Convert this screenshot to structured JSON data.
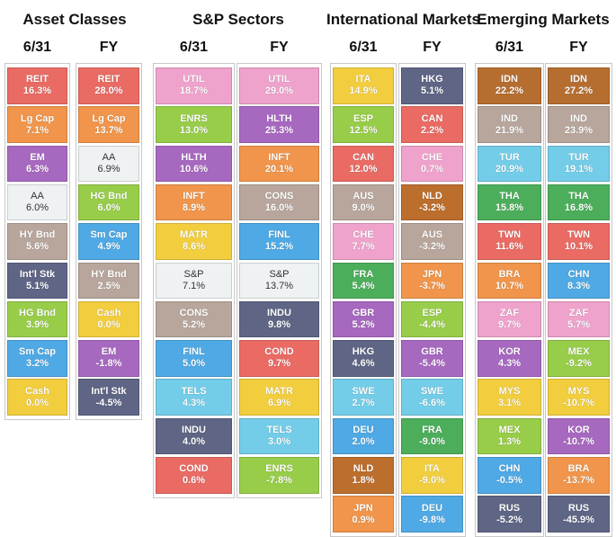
{
  "colors": {
    "REIT": "#e96b64",
    "Lg Cap": "#f0954b",
    "EM": "#a768c0",
    "AA": "#eef2f3",
    "HY Bnd": "#b8a69c",
    "Int'l Stk": "#5e6585",
    "HG Bnd": "#98cd4a",
    "Sm Cap": "#4fa9e4",
    "Cash": "#f2ce3f",
    "UTIL": "#efa3cc",
    "ENRS": "#98cd4a",
    "HLTH": "#a768c0",
    "INFT": "#f0954b",
    "MATR": "#f2ce3f",
    "S&P": "#eef2f3",
    "CONS": "#b8a69c",
    "FINL": "#4fa9e4",
    "TELS": "#73cde8",
    "INDU": "#5e6585",
    "COND": "#e96b64",
    "ITA": "#f2ce3f",
    "ESP": "#98cd4a",
    "CAN": "#e96b64",
    "AUS": "#b8a69c",
    "CHE": "#efa3cc",
    "FRA": "#4cae5b",
    "GBR": "#a768c0",
    "HKG": "#5e6585",
    "SWE": "#73cde8",
    "DEU": "#4fa9e4",
    "NLD": "#bc6e2d",
    "JPN": "#f0954b",
    "IDN": "#b66e30",
    "IND": "#b8a69c",
    "TUR": "#73cde8",
    "THA": "#4cae5b",
    "TWN": "#e96b64",
    "BRA": "#f0954b",
    "ZAF": "#efa3cc",
    "KOR": "#a768c0",
    "MYS": "#f2ce3f",
    "MEX": "#98cd4a",
    "CHN": "#4fa9e4",
    "RUS": "#5e6585"
  },
  "chart_data": {
    "type": "table",
    "panels": [
      {
        "title": "Asset Classes",
        "columns": [
          {
            "header": "6/31",
            "cells": [
              {
                "label": "REIT",
                "value": "16.3%"
              },
              {
                "label": "Lg Cap",
                "value": "7.1%"
              },
              {
                "label": "EM",
                "value": "6.3%"
              },
              {
                "label": "AA",
                "value": "6.0%"
              },
              {
                "label": "HY Bnd",
                "value": "5.6%"
              },
              {
                "label": "Int'l Stk",
                "value": "5.1%"
              },
              {
                "label": "HG Bnd",
                "value": "3.9%"
              },
              {
                "label": "Sm Cap",
                "value": "3.2%"
              },
              {
                "label": "Cash",
                "value": "0.0%"
              }
            ]
          },
          {
            "header": "FY",
            "cells": [
              {
                "label": "REIT",
                "value": "28.0%"
              },
              {
                "label": "Lg Cap",
                "value": "13.7%"
              },
              {
                "label": "AA",
                "value": "6.9%"
              },
              {
                "label": "HG Bnd",
                "value": "6.0%"
              },
              {
                "label": "Sm Cap",
                "value": "4.9%"
              },
              {
                "label": "HY Bnd",
                "value": "2.5%"
              },
              {
                "label": "Cash",
                "value": "0.0%"
              },
              {
                "label": "EM",
                "value": "-1.8%"
              },
              {
                "label": "Int'l Stk",
                "value": "-4.5%"
              }
            ]
          }
        ]
      },
      {
        "title": "S&P Sectors",
        "columns": [
          {
            "header": "6/31",
            "cells": [
              {
                "label": "UTIL",
                "value": "18.7%"
              },
              {
                "label": "ENRS",
                "value": "13.0%"
              },
              {
                "label": "HLTH",
                "value": "10.6%"
              },
              {
                "label": "INFT",
                "value": "8.9%"
              },
              {
                "label": "MATR",
                "value": "8.6%"
              },
              {
                "label": "S&P",
                "value": "7.1%"
              },
              {
                "label": "CONS",
                "value": "5.2%"
              },
              {
                "label": "FINL",
                "value": "5.0%"
              },
              {
                "label": "TELS",
                "value": "4.3%"
              },
              {
                "label": "INDU",
                "value": "4.0%"
              },
              {
                "label": "COND",
                "value": "0.6%"
              }
            ]
          },
          {
            "header": "FY",
            "cells": [
              {
                "label": "UTIL",
                "value": "29.0%"
              },
              {
                "label": "HLTH",
                "value": "25.3%"
              },
              {
                "label": "INFT",
                "value": "20.1%"
              },
              {
                "label": "CONS",
                "value": "16.0%"
              },
              {
                "label": "FINL",
                "value": "15.2%"
              },
              {
                "label": "S&P",
                "value": "13.7%"
              },
              {
                "label": "INDU",
                "value": "9.8%"
              },
              {
                "label": "COND",
                "value": "9.7%"
              },
              {
                "label": "MATR",
                "value": "6.9%"
              },
              {
                "label": "TELS",
                "value": "3.0%"
              },
              {
                "label": "ENRS",
                "value": "-7.8%"
              }
            ]
          }
        ]
      },
      {
        "title": "International Markets",
        "columns": [
          {
            "header": "6/31",
            "cells": [
              {
                "label": "ITA",
                "value": "14.9%"
              },
              {
                "label": "ESP",
                "value": "12.5%"
              },
              {
                "label": "CAN",
                "value": "12.0%"
              },
              {
                "label": "AUS",
                "value": "9.0%"
              },
              {
                "label": "CHE",
                "value": "7.7%"
              },
              {
                "label": "FRA",
                "value": "5.4%"
              },
              {
                "label": "GBR",
                "value": "5.2%"
              },
              {
                "label": "HKG",
                "value": "4.6%"
              },
              {
                "label": "SWE",
                "value": "2.7%"
              },
              {
                "label": "DEU",
                "value": "2.0%"
              },
              {
                "label": "NLD",
                "value": "1.8%"
              },
              {
                "label": "JPN",
                "value": "0.9%"
              }
            ]
          },
          {
            "header": "FY",
            "cells": [
              {
                "label": "HKG",
                "value": "5.1%"
              },
              {
                "label": "CAN",
                "value": "2.2%"
              },
              {
                "label": "CHE",
                "value": "0.7%"
              },
              {
                "label": "NLD",
                "value": "-3.2%"
              },
              {
                "label": "AUS",
                "value": "-3.2%"
              },
              {
                "label": "JPN",
                "value": "-3.7%"
              },
              {
                "label": "ESP",
                "value": "-4.4%"
              },
              {
                "label": "GBR",
                "value": "-5.4%"
              },
              {
                "label": "SWE",
                "value": "-6.6%"
              },
              {
                "label": "FRA",
                "value": "-9.0%"
              },
              {
                "label": "ITA",
                "value": "-9.0%"
              },
              {
                "label": "DEU",
                "value": "-9.8%"
              }
            ]
          }
        ]
      },
      {
        "title": "Emerging Markets",
        "columns": [
          {
            "header": "6/31",
            "cells": [
              {
                "label": "IDN",
                "value": "22.2%"
              },
              {
                "label": "IND",
                "value": "21.9%"
              },
              {
                "label": "TUR",
                "value": "20.9%"
              },
              {
                "label": "THA",
                "value": "15.8%"
              },
              {
                "label": "TWN",
                "value": "11.6%"
              },
              {
                "label": "BRA",
                "value": "10.7%"
              },
              {
                "label": "ZAF",
                "value": "9.7%"
              },
              {
                "label": "KOR",
                "value": "4.3%"
              },
              {
                "label": "MYS",
                "value": "3.1%"
              },
              {
                "label": "MEX",
                "value": "1.3%"
              },
              {
                "label": "CHN",
                "value": "-0.5%"
              },
              {
                "label": "RUS",
                "value": "-5.2%"
              }
            ]
          },
          {
            "header": "FY",
            "cells": [
              {
                "label": "IDN",
                "value": "27.2%"
              },
              {
                "label": "IND",
                "value": "23.9%"
              },
              {
                "label": "TUR",
                "value": "19.1%"
              },
              {
                "label": "THA",
                "value": "16.8%"
              },
              {
                "label": "TWN",
                "value": "10.1%"
              },
              {
                "label": "CHN",
                "value": "8.3%"
              },
              {
                "label": "ZAF",
                "value": "5.7%"
              },
              {
                "label": "MEX",
                "value": "-9.2%"
              },
              {
                "label": "MYS",
                "value": "-10.7%"
              },
              {
                "label": "KOR",
                "value": "-10.7%"
              },
              {
                "label": "BRA",
                "value": "-13.7%"
              },
              {
                "label": "RUS",
                "value": "-45.9%"
              }
            ]
          }
        ]
      }
    ]
  }
}
